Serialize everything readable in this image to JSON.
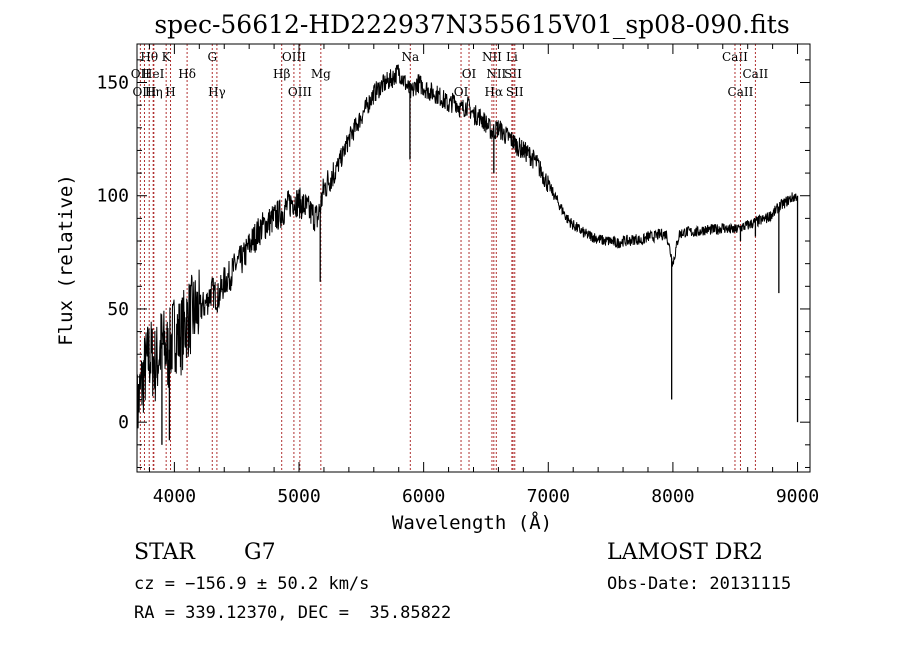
{
  "chart_data": {
    "type": "line",
    "title": "spec-56612-HD222937N355615V01_sp08-090.fits",
    "xlabel": "Wavelength (Å)",
    "ylabel": "Flux (relative)",
    "xlim": [
      3700,
      9100
    ],
    "ylim": [
      -22,
      167
    ],
    "xticks": [
      4000,
      5000,
      6000,
      7000,
      8000,
      9000
    ],
    "yticks": [
      0,
      50,
      100,
      150
    ],
    "grid": false,
    "line_color": "#000000",
    "marker_color": "#b03030",
    "series": [
      {
        "x": [
          3700,
          3750,
          3800,
          3850,
          3900,
          3950,
          4000,
          4050,
          4100,
          4150,
          4200,
          4250,
          4300,
          4350,
          4400,
          4450,
          4500,
          4550,
          4600,
          4650,
          4700,
          4750,
          4800,
          4850,
          4900,
          4950,
          5000,
          5050,
          5100,
          5150,
          5200,
          5250,
          5300,
          5350,
          5400,
          5450,
          5500,
          5550,
          5600,
          5650,
          5700,
          5750,
          5800,
          5850,
          5900,
          5950,
          6000,
          6050,
          6100,
          6150,
          6200,
          6250,
          6300,
          6350,
          6400,
          6450,
          6500,
          6550,
          6600,
          6650,
          6700,
          6750,
          6800,
          6850,
          6900,
          6950,
          7000,
          7050,
          7100,
          7150,
          7200,
          7250,
          7300,
          7350,
          7400,
          7450,
          7500,
          7550,
          7600,
          7650,
          7700,
          7750,
          7800,
          7850,
          7900,
          7950,
          8000,
          8050,
          8100,
          8150,
          8200,
          8250,
          8300,
          8350,
          8400,
          8450,
          8500,
          8550,
          8600,
          8650,
          8700,
          8750,
          8800,
          8850,
          8900,
          8950,
          9000
        ],
        "values": [
          5,
          20,
          30,
          25,
          35,
          30,
          40,
          38,
          45,
          48,
          50,
          52,
          58,
          55,
          62,
          65,
          70,
          72,
          78,
          82,
          86,
          88,
          90,
          92,
          95,
          98,
          97,
          95,
          92,
          90,
          103,
          108,
          112,
          118,
          125,
          130,
          135,
          140,
          145,
          148,
          150,
          152,
          155,
          150,
          145,
          150,
          148,
          146,
          145,
          143,
          140,
          142,
          138,
          140,
          136,
          135,
          132,
          128,
          130,
          127,
          125,
          122,
          120,
          118,
          115,
          110,
          105,
          100,
          95,
          90,
          87,
          85,
          83,
          82,
          81,
          80,
          80,
          79,
          80,
          80,
          81,
          80,
          82,
          82,
          83,
          83,
          70,
          83,
          84,
          84,
          84,
          85,
          85,
          85,
          86,
          85,
          85,
          86,
          87,
          88,
          89,
          90,
          92,
          95,
          97,
          99,
          100
        ]
      }
    ],
    "dips": [
      {
        "x": 3900,
        "value": -10
      },
      {
        "x": 3960,
        "value": -8
      },
      {
        "x": 5170,
        "value": 62
      },
      {
        "x": 5890,
        "value": 116
      },
      {
        "x": 6563,
        "value": 110
      },
      {
        "x": 7990,
        "value": 10
      },
      {
        "x": 8542,
        "value": 80
      },
      {
        "x": 8662,
        "value": 82
      },
      {
        "x": 8850,
        "value": 57
      },
      {
        "x": 9000,
        "value": 0
      }
    ],
    "line_markers": [
      {
        "label": "Hθ",
        "x": 3798,
        "row": 1
      },
      {
        "label": "OII",
        "x": 3727,
        "row": 2
      },
      {
        "label": "OIII",
        "x": 3760,
        "row": 3
      },
      {
        "label": "HeI",
        "x": 3830,
        "row": 2
      },
      {
        "label": "Hη",
        "x": 3835,
        "row": 3
      },
      {
        "label": "K",
        "x": 3934,
        "row": 1
      },
      {
        "label": "H",
        "x": 3969,
        "row": 3
      },
      {
        "label": "Hδ",
        "x": 4102,
        "row": 2
      },
      {
        "label": "G",
        "x": 4304,
        "row": 1
      },
      {
        "label": "Hγ",
        "x": 4341,
        "row": 3
      },
      {
        "label": "Hβ",
        "x": 4861,
        "row": 2
      },
      {
        "label": "OIII",
        "x": 4959,
        "row": 1
      },
      {
        "label": "OIII",
        "x": 5007,
        "row": 3
      },
      {
        "label": "Mg",
        "x": 5175,
        "row": 2
      },
      {
        "label": "Na",
        "x": 5893,
        "row": 1
      },
      {
        "label": "OI",
        "x": 6300,
        "row": 3
      },
      {
        "label": "OI",
        "x": 6364,
        "row": 2
      },
      {
        "label": "NII",
        "x": 6548,
        "row": 1
      },
      {
        "label": "NII",
        "x": 6583,
        "row": 2
      },
      {
        "label": "Hα",
        "x": 6563,
        "row": 3
      },
      {
        "label": "Li",
        "x": 6708,
        "row": 1
      },
      {
        "label": "SII",
        "x": 6717,
        "row": 2
      },
      {
        "label": "SII",
        "x": 6731,
        "row": 3
      },
      {
        "label": "CaII",
        "x": 8498,
        "row": 1
      },
      {
        "label": "CaII",
        "x": 8542,
        "row": 3
      },
      {
        "label": "CaII",
        "x": 8662,
        "row": 2
      }
    ]
  },
  "info": {
    "object_type": "STAR",
    "subclass": "G7",
    "cz": "cz = −156.9 ± 50.2 km/s",
    "coords": "RA = 339.12370, DEC =  35.85822",
    "survey": "LAMOST DR2",
    "obs_date": "Obs-Date: 20131115"
  }
}
